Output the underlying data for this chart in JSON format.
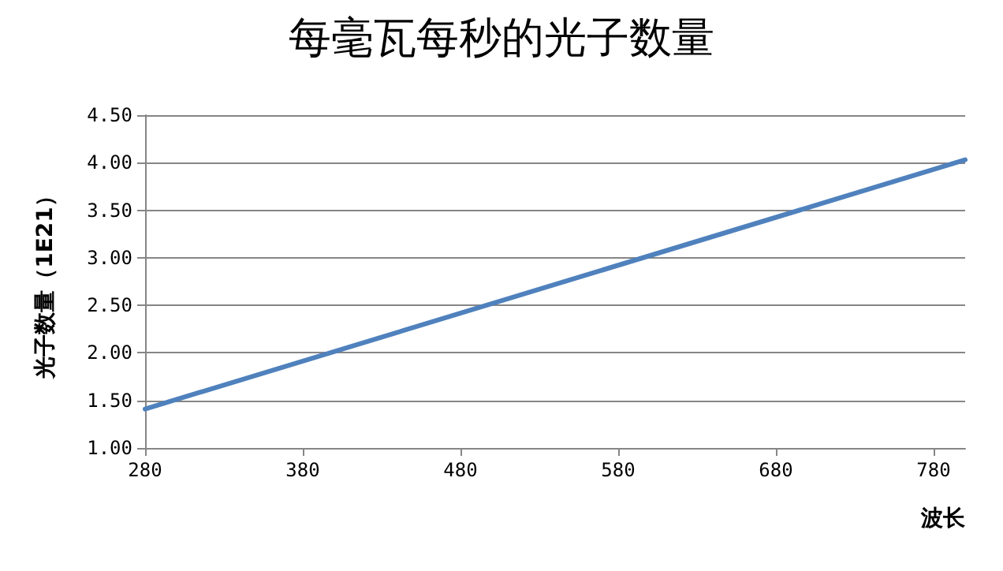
{
  "chart_data": {
    "type": "line",
    "title": "每毫瓦每秒的光子数量",
    "xlabel": "波长",
    "ylabel": "光子数量（1E21）",
    "x": [
      280,
      800
    ],
    "series": [
      {
        "color": "#4f81bd",
        "values": [
          1.41,
          4.03
        ]
      }
    ],
    "xlim": [
      280,
      800
    ],
    "xticks": [
      280,
      380,
      480,
      580,
      680,
      780
    ],
    "ylim": [
      1,
      4.5
    ],
    "yticks": [
      {
        "value": 1,
        "label": "1.00"
      },
      {
        "value": 1.5,
        "label": "1.50"
      },
      {
        "value": 2,
        "label": "2.00"
      },
      {
        "value": 2.5,
        "label": "2.50"
      },
      {
        "value": 3,
        "label": "3.00"
      },
      {
        "value": 3.5,
        "label": "3.50"
      },
      {
        "value": 4,
        "label": "4.00"
      },
      {
        "value": 4.5,
        "label": "4.50"
      }
    ],
    "grid": "y",
    "marker": "none",
    "line_style": "solid"
  }
}
